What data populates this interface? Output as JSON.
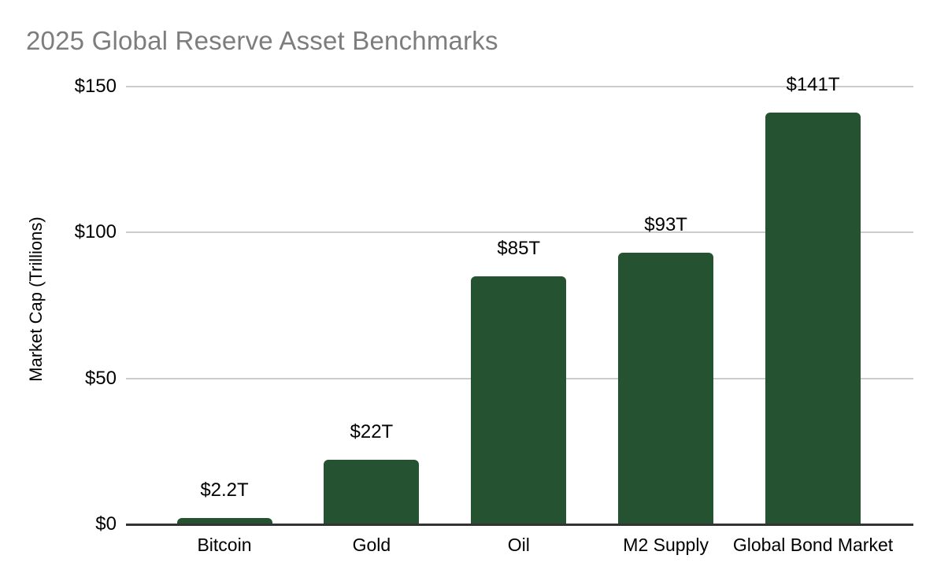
{
  "chart_data": {
    "type": "bar",
    "title": "2025 Global Reserve Asset Benchmarks",
    "xlabel": "",
    "ylabel": "Market Cap (Trillions)",
    "categories": [
      "Bitcoin",
      "Gold",
      "Oil",
      "M2 Supply",
      "Global Bond Market"
    ],
    "values": [
      2.2,
      22,
      85,
      93,
      141
    ],
    "data_labels": [
      "$2.2T",
      "$22T",
      "$85T",
      "$93T",
      "$141T"
    ],
    "y_ticks": [
      {
        "value": 0,
        "label": "$0"
      },
      {
        "value": 50,
        "label": "$50"
      },
      {
        "value": 100,
        "label": "$100"
      },
      {
        "value": 150,
        "label": "$150"
      }
    ],
    "ylim": [
      0,
      150
    ],
    "grid": true,
    "legend_position": "none",
    "colors": {
      "bar": "#255230",
      "title_text": "#7d7d7d",
      "grid_line": "#cccccc",
      "axis_line": "#333333",
      "label_text": "#000000",
      "background": "#ffffff"
    }
  }
}
